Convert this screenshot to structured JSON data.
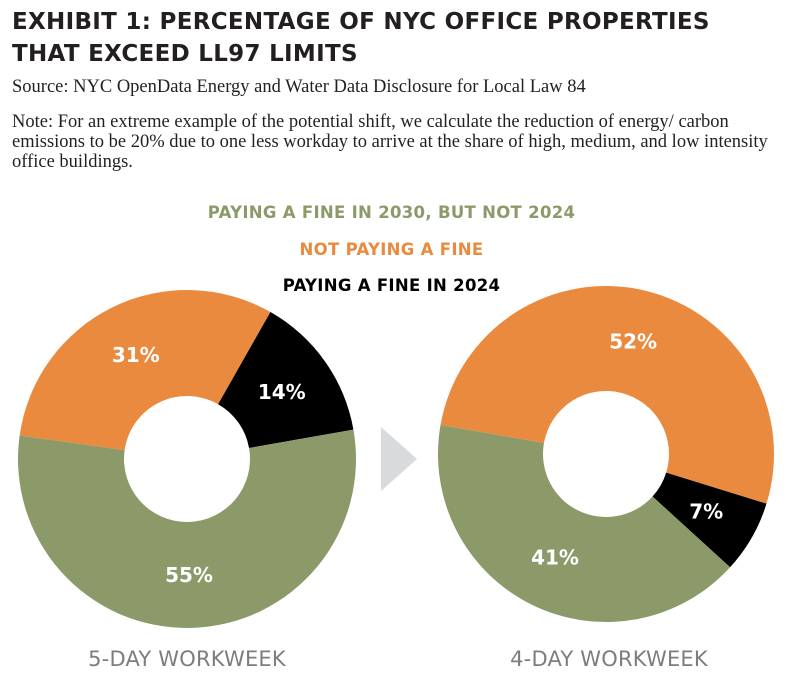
{
  "header": {
    "title": "EXHIBIT 1: PERCENTAGE OF NYC OFFICE PROPERTIES THAT EXCEED LL97 LIMITS",
    "source": "Source: NYC OpenData Energy and Water Data Disclosure for Local Law 84",
    "note": "Note: For an extreme example of the potential shift, we calculate the reduction of energy/ carbon emissions to be 20% due to one less workday to arrive at the share of high, medium, and low intensity office buildings."
  },
  "legend": [
    {
      "label": "PAYING A FINE IN 2030, BUT NOT 2024",
      "color": "#8c9a6a"
    },
    {
      "label": "NOT PAYING A FINE",
      "color": "#ea8a3f"
    },
    {
      "label": "PAYING A FINE IN 2024",
      "color": "#000000"
    }
  ],
  "chart_data": [
    {
      "type": "pie",
      "title": "5-DAY WORKWEEK",
      "slices": [
        {
          "label": "PAYING A FINE IN 2030, BUT NOT 2024",
          "value": 55,
          "text": "55%",
          "color": "#8c9a6a"
        },
        {
          "label": "NOT PAYING A FINE",
          "value": 31,
          "text": "31%",
          "color": "#ea8a3f"
        },
        {
          "label": "PAYING A FINE IN 2024",
          "value": 14,
          "text": "14%",
          "color": "#000000"
        }
      ]
    },
    {
      "type": "pie",
      "title": "4-DAY WORKWEEK",
      "slices": [
        {
          "label": "PAYING A FINE IN 2030, BUT NOT 2024",
          "value": 41,
          "text": "41%",
          "color": "#8c9a6a"
        },
        {
          "label": "NOT PAYING A FINE",
          "value": 52,
          "text": "52%",
          "color": "#ea8a3f"
        },
        {
          "label": "PAYING A FINE IN 2024",
          "value": 7,
          "text": "7%",
          "color": "#000000"
        }
      ]
    }
  ],
  "arrow_icon": "chevron-right-icon"
}
